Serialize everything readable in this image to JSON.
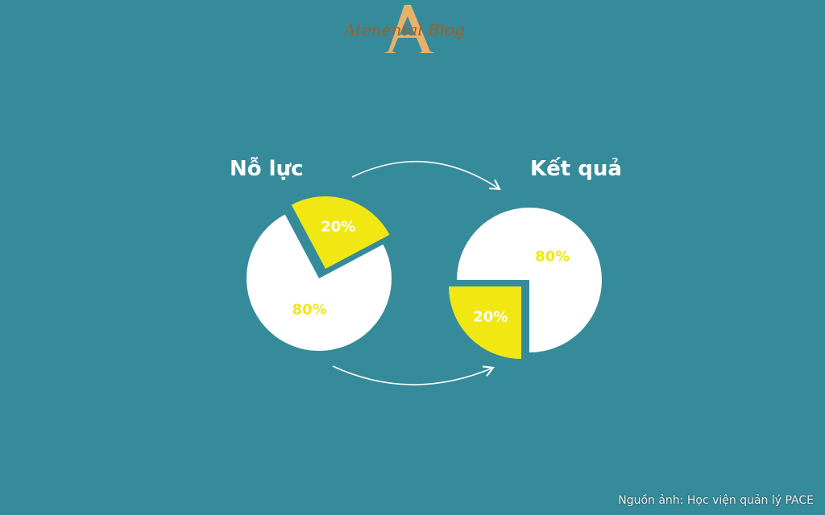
{
  "logo": {
    "text": "Atenental Blog",
    "letter": "A"
  },
  "chart_data": [
    {
      "type": "pie",
      "title": "Nỗ lực",
      "slices": [
        {
          "label": "20%",
          "value": 20,
          "color": "#f1e713",
          "exploded": true
        },
        {
          "label": "80%",
          "value": 80,
          "color": "#ffffff"
        }
      ]
    },
    {
      "type": "pie",
      "title": "Kết quả",
      "slices": [
        {
          "label": "20%",
          "value": 20,
          "color": "#f1e713",
          "exploded": true
        },
        {
          "label": "80%",
          "value": 80,
          "color": "#ffffff"
        }
      ]
    }
  ],
  "credit": "Nguồn ảnh: Học viện quản lý PACE",
  "colors": {
    "background": "#368b9b",
    "accent": "#f1e713",
    "white_label": "#f1e713",
    "yellow_label": "#ffffff"
  }
}
